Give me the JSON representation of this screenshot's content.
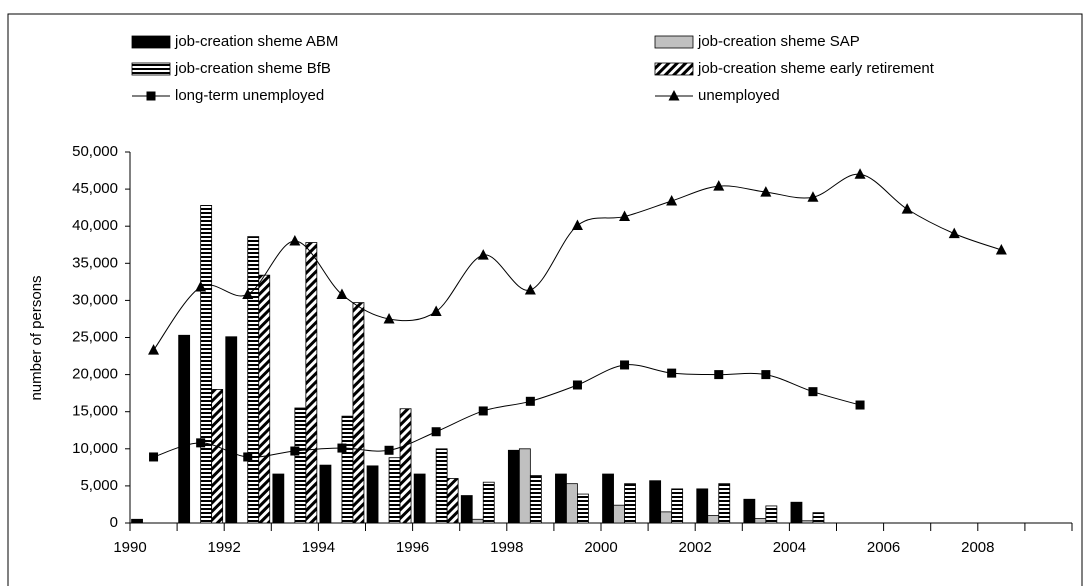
{
  "chart_data": {
    "type": "bar-line",
    "y_label": "number of persons",
    "categories": [
      "1990",
      null,
      "1992",
      null,
      "1994",
      null,
      "1996",
      null,
      "1998",
      null,
      "2000",
      null,
      "2002",
      null,
      "2004",
      null,
      "2006",
      null,
      "2008",
      null
    ],
    "ylim": [
      0,
      50000
    ],
    "yticks": [
      0,
      {
        "value": 5000,
        "label": "5,000"
      },
      {
        "value": 10000,
        "label": "10,000"
      },
      {
        "value": 15000,
        "label": "15,000"
      },
      {
        "value": 20000,
        "label": "20,000"
      },
      {
        "value": 25000,
        "label": "25,000"
      },
      {
        "value": 30000,
        "label": "30,000"
      },
      {
        "value": 35000,
        "label": "35,000"
      },
      {
        "value": 40000,
        "label": "40,000"
      },
      {
        "value": 45000,
        "label": "45,000"
      },
      {
        "value": 50000,
        "label": "50,000"
      }
    ],
    "series": [
      {
        "name": "job-creation sheme ABM",
        "kind": "bar",
        "pattern": "solid",
        "color": "#000000",
        "values": [
          500,
          25300,
          25100,
          6600,
          7800,
          7700,
          6600,
          3700,
          9800,
          6600,
          6600,
          5700,
          4600,
          3200,
          2800,
          null,
          null,
          null,
          null,
          null
        ]
      },
      {
        "name": "job-creation sheme SAP",
        "kind": "bar",
        "pattern": "solid",
        "color": "#c0c0c0",
        "values": [
          null,
          null,
          null,
          null,
          null,
          null,
          null,
          500,
          10000,
          5300,
          2400,
          1500,
          1000,
          600,
          300,
          null,
          null,
          null,
          null,
          null
        ]
      },
      {
        "name": "job-creation sheme BfB",
        "kind": "bar",
        "pattern": "horizontal",
        "color": "#000000",
        "values": [
          null,
          42800,
          38600,
          15500,
          14400,
          8800,
          10000,
          5500,
          6400,
          3900,
          5300,
          4600,
          5300,
          2300,
          1400,
          null,
          null,
          null,
          null,
          null
        ]
      },
      {
        "name": "job-creation sheme early retirement",
        "kind": "bar",
        "pattern": "diagonal",
        "color": "#000000",
        "values": [
          null,
          18000,
          33400,
          37800,
          29700,
          15400,
          6000,
          null,
          null,
          null,
          null,
          null,
          null,
          null,
          null,
          null,
          null,
          null,
          null,
          null
        ]
      },
      {
        "name": "long-term unemployed",
        "kind": "line",
        "marker": "square",
        "color": "#000000",
        "values": [
          8900,
          10800,
          8900,
          9700,
          10100,
          9800,
          12300,
          15100,
          16400,
          18600,
          21300,
          20200,
          20000,
          20000,
          17700,
          15900,
          null,
          null,
          null,
          null
        ]
      },
      {
        "name": "unemployed",
        "kind": "line",
        "marker": "triangle",
        "color": "#000000",
        "values": [
          23300,
          31800,
          30800,
          38000,
          30800,
          27500,
          28500,
          36100,
          31400,
          40100,
          41300,
          43400,
          45400,
          44600,
          43900,
          47000,
          42300,
          39000,
          36800,
          null
        ]
      }
    ]
  }
}
